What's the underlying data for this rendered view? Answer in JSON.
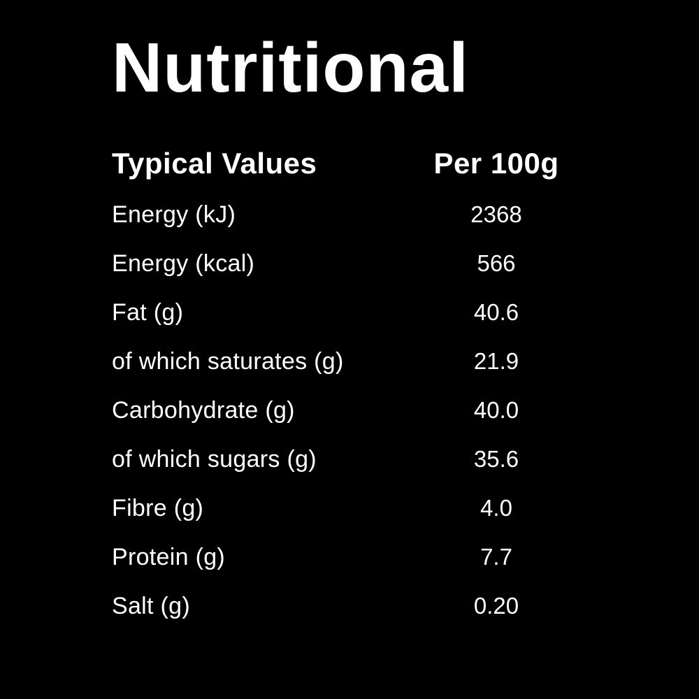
{
  "colors": {
    "background": "#000000",
    "text": "#ffffff"
  },
  "label": {
    "title": "Nutritional",
    "table": {
      "header": {
        "label_column": "Typical Values",
        "value_column": "Per 100g"
      },
      "rows": [
        {
          "label": "Energy (kJ)",
          "value": "2368"
        },
        {
          "label": "Energy (kcal)",
          "value": "566"
        },
        {
          "label": "Fat (g)",
          "value": "40.6"
        },
        {
          "label": "of which saturates (g)",
          "value": "21.9"
        },
        {
          "label": "Carbohydrate (g)",
          "value": "40.0"
        },
        {
          "label": "of which sugars (g)",
          "value": "35.6"
        },
        {
          "label": "Fibre (g)",
          "value": "4.0"
        },
        {
          "label": "Protein (g)",
          "value": "7.7"
        },
        {
          "label": "Salt (g)",
          "value": "0.20"
        }
      ]
    }
  }
}
